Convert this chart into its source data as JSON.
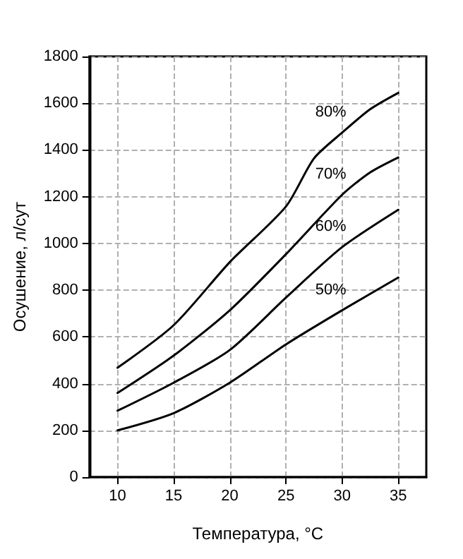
{
  "chart_data": {
    "type": "line",
    "xlabel": "Температура, °C",
    "ylabel": "Осушение, л/сут",
    "x": [
      10,
      15,
      20,
      25,
      30,
      35
    ],
    "series": [
      {
        "name": "80%",
        "color": "#000000",
        "x": [
          10,
          15,
          20,
          25,
          27.5,
          30,
          32.5,
          35
        ],
        "values": [
          468,
          650,
          920,
          1158,
          1364,
          1474,
          1574,
          1644
        ]
      },
      {
        "name": "70%",
        "color": "#000000",
        "x": [
          10,
          15,
          20,
          25,
          30,
          32.5,
          35
        ],
        "values": [
          360,
          520,
          714,
          954,
          1208,
          1304,
          1368
        ]
      },
      {
        "name": "60%",
        "color": "#000000",
        "values": [
          284,
          404,
          544,
          768,
          984,
          1144
        ]
      },
      {
        "name": "50%",
        "color": "#000000",
        "values": [
          200,
          274,
          404,
          568,
          714,
          854
        ]
      }
    ],
    "xlim": [
      7.5,
      37.5
    ],
    "xticks": [
      10,
      15,
      20,
      25,
      30,
      35
    ],
    "ylim": [
      0,
      1800
    ],
    "yticks": [
      0,
      200,
      400,
      600,
      800,
      1000,
      1200,
      1400,
      1600,
      1800
    ],
    "grid": true,
    "marker": "none",
    "line_style": "solid"
  }
}
